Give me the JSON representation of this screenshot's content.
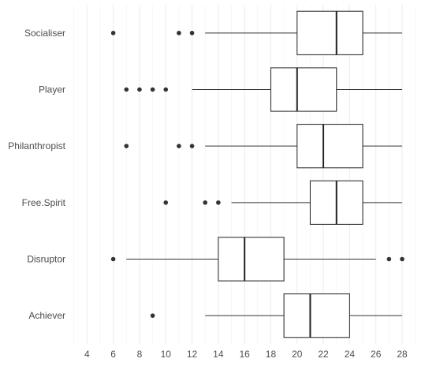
{
  "chart_data": {
    "type": "boxplot",
    "orientation": "horizontal",
    "title": "",
    "xlabel": "",
    "ylabel": "",
    "xlim": [
      2.9,
      29.2
    ],
    "x_ticks": [
      4,
      6,
      8,
      10,
      12,
      14,
      16,
      18,
      20,
      22,
      24,
      26,
      28
    ],
    "grid": true,
    "categories": [
      "Socialiser",
      "Player",
      "Philanthropist",
      "Free.Spirit",
      "Disruptor",
      "Achiever"
    ],
    "boxes": [
      {
        "category": "Socialiser",
        "whisker_low": 13,
        "q1": 20,
        "median": 23,
        "q3": 25,
        "whisker_high": 28,
        "outliers": [
          6,
          11,
          12
        ]
      },
      {
        "category": "Player",
        "whisker_low": 12,
        "q1": 18,
        "median": 20,
        "q3": 23,
        "whisker_high": 28,
        "outliers": [
          7,
          8,
          9,
          10
        ]
      },
      {
        "category": "Philanthropist",
        "whisker_low": 13,
        "q1": 20,
        "median": 22,
        "q3": 25,
        "whisker_high": 28,
        "outliers": [
          7,
          11,
          12
        ]
      },
      {
        "category": "Free.Spirit",
        "whisker_low": 15,
        "q1": 21,
        "median": 23,
        "q3": 25,
        "whisker_high": 28,
        "outliers": [
          10,
          13,
          14
        ]
      },
      {
        "category": "Disruptor",
        "whisker_low": 7,
        "q1": 14,
        "median": 16,
        "q3": 19,
        "whisker_high": 26,
        "outliers": [
          6,
          27,
          28
        ]
      },
      {
        "category": "Achiever",
        "whisker_low": 13,
        "q1": 19,
        "median": 21,
        "q3": 24,
        "whisker_high": 28,
        "outliers": [
          9
        ]
      }
    ]
  }
}
